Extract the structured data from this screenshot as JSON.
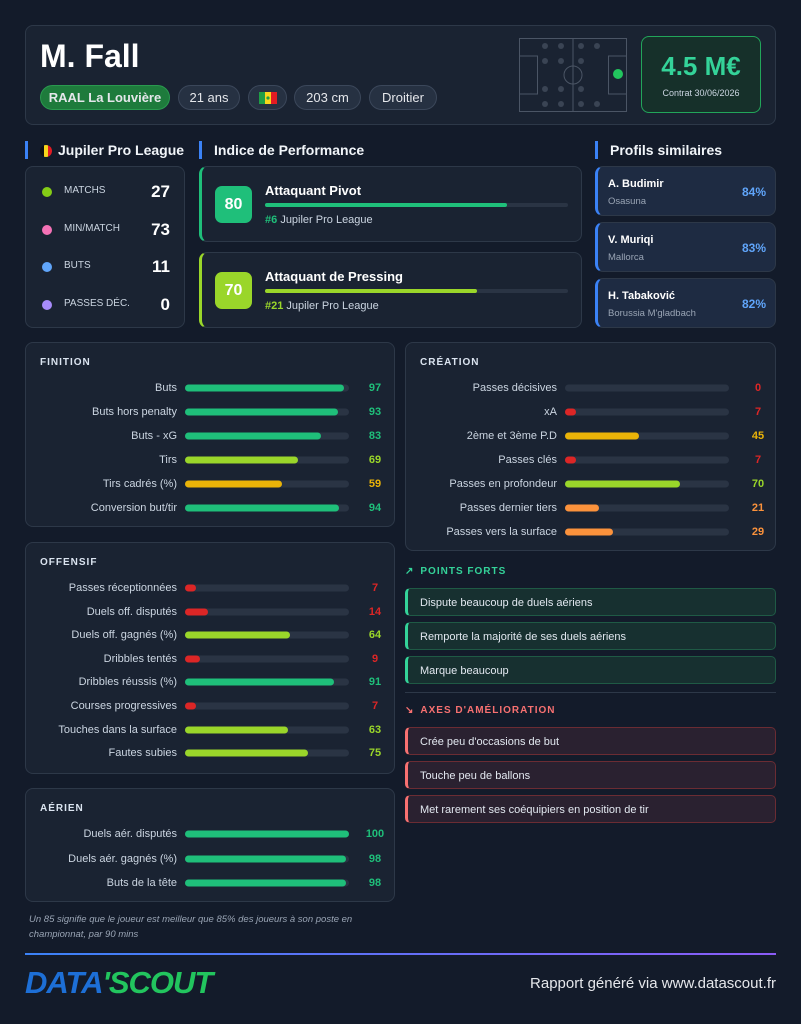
{
  "header": {
    "name": "M. Fall",
    "club": "RAAL La Louvière",
    "age": "21 ans",
    "height": "203 cm",
    "foot": "Droitier",
    "market_value": "4.5 M€",
    "contract": "Contrat 30/06/2026"
  },
  "league": {
    "title": "Jupiler Pro League",
    "stats": [
      {
        "label": "MATCHS",
        "value": 27
      },
      {
        "label": "MIN/MATCH",
        "value": 73
      },
      {
        "label": "BUTS",
        "value": 11
      },
      {
        "label": "PASSES DÉC.",
        "value": 0
      }
    ]
  },
  "performance": {
    "title": "Indice de Performance",
    "roles": [
      {
        "score": 80,
        "name": "Attaquant Pivot",
        "rank": "#6",
        "league": "Jupiler Pro League"
      },
      {
        "score": 70,
        "name": "Attaquant de Pressing",
        "rank": "#21",
        "league": "Jupiler Pro League"
      }
    ]
  },
  "similar": {
    "title": "Profils similaires",
    "players": [
      {
        "name": "A. Budimir",
        "club": "Osasuna",
        "similarity": "84%"
      },
      {
        "name": "V. Muriqi",
        "club": "Mallorca",
        "similarity": "83%"
      },
      {
        "name": "H. Tabaković",
        "club": "Borussia M'gladbach",
        "similarity": "82%"
      }
    ]
  },
  "sections": [
    {
      "title": "FINITION",
      "rows": [
        {
          "label": "Buts",
          "value": 97
        },
        {
          "label": "Buts hors penalty",
          "value": 93
        },
        {
          "label": "Buts - xG",
          "value": 83
        },
        {
          "label": "Tirs",
          "value": 69
        },
        {
          "label": "Tirs cadrés (%)",
          "value": 59
        },
        {
          "label": "Conversion but/tir",
          "value": 94
        }
      ]
    },
    {
      "title": "CRÉATION",
      "rows": [
        {
          "label": "Passes décisives",
          "value": 0
        },
        {
          "label": "xA",
          "value": 7
        },
        {
          "label": "2ème et 3ème P.D",
          "value": 45
        },
        {
          "label": "Passes clés",
          "value": 7
        },
        {
          "label": "Passes en profondeur",
          "value": 70
        },
        {
          "label": "Passes dernier tiers",
          "value": 21
        },
        {
          "label": "Passes vers la surface",
          "value": 29
        }
      ]
    },
    {
      "title": "OFFENSIF",
      "rows": [
        {
          "label": "Passes réceptionnées",
          "value": 7
        },
        {
          "label": "Duels off. disputés",
          "value": 14
        },
        {
          "label": "Duels off. gagnés (%)",
          "value": 64
        },
        {
          "label": "Dribbles tentés",
          "value": 9
        },
        {
          "label": "Dribbles réussis (%)",
          "value": 91
        },
        {
          "label": "Courses progressives",
          "value": 7
        },
        {
          "label": "Touches dans la surface",
          "value": 63
        },
        {
          "label": "Fautes subies",
          "value": 75
        }
      ]
    },
    {
      "title": "AÉRIEN",
      "rows": [
        {
          "label": "Duels aér. disputés",
          "value": 100
        },
        {
          "label": "Duels aér. gagnés (%)",
          "value": 98
        },
        {
          "label": "Buts de la tête",
          "value": 98
        }
      ]
    }
  ],
  "strengths": {
    "title": "POINTS FORTS",
    "items": [
      "Dispute beaucoup de duels aériens",
      "Remporte la majorité de ses duels aériens",
      "Marque beaucoup"
    ]
  },
  "improvements": {
    "title": "AXES D'AMÉLIORATION",
    "items": [
      "Crée peu d'occasions de but",
      "Touche peu de ballons",
      "Met rarement ses coéquipiers en position de tir"
    ]
  },
  "note": "Un 85 signifie que le joueur est meilleur que 85% des joueurs à son poste en championnat, par 90 mins",
  "footer": {
    "logo_left": "DATA",
    "logo_right": "'SCOUT",
    "text": "Rapport généré via www.datascout.fr"
  }
}
